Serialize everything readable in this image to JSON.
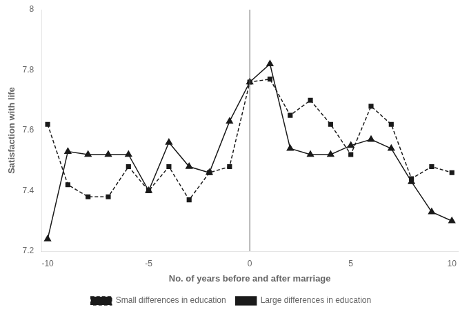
{
  "chart_data": {
    "type": "line",
    "xlabel": "No. of years before and after marriage",
    "ylabel": "Satisfaction with life",
    "x": [
      -10,
      -9,
      -8,
      -7,
      -6,
      -5,
      -4,
      -3,
      -2,
      -1,
      0,
      1,
      2,
      3,
      4,
      5,
      6,
      7,
      8,
      9,
      10
    ],
    "series": [
      {
        "name": "Small differences in education",
        "color": "#1a1a1a",
        "marker": "square",
        "line_style": "dashed",
        "values": [
          7.62,
          7.42,
          7.38,
          7.38,
          7.48,
          7.4,
          7.48,
          7.37,
          7.46,
          7.48,
          7.76,
          7.77,
          7.65,
          7.7,
          7.62,
          7.52,
          7.68,
          7.62,
          7.44,
          7.48,
          7.46
        ]
      },
      {
        "name": "Large differences in education",
        "color": "#1a1a1a",
        "marker": "triangle",
        "line_style": "solid",
        "values": [
          7.24,
          7.53,
          7.52,
          7.52,
          7.52,
          7.4,
          7.56,
          7.48,
          7.46,
          7.63,
          7.76,
          7.82,
          7.54,
          7.52,
          7.52,
          7.55,
          7.57,
          7.54,
          7.43,
          7.33,
          7.3
        ]
      }
    ],
    "vline_x": 0,
    "vline_color": "#666666",
    "xlim": [
      -10.3,
      10.3
    ],
    "xticks": [
      -10,
      -5,
      0,
      5,
      10
    ],
    "ylim": [
      7.2,
      8.0
    ],
    "yticks": [
      7.2,
      7.4,
      7.6,
      7.8,
      8
    ],
    "grid": false,
    "legend": "bottom",
    "background_color": "#ffffff"
  }
}
